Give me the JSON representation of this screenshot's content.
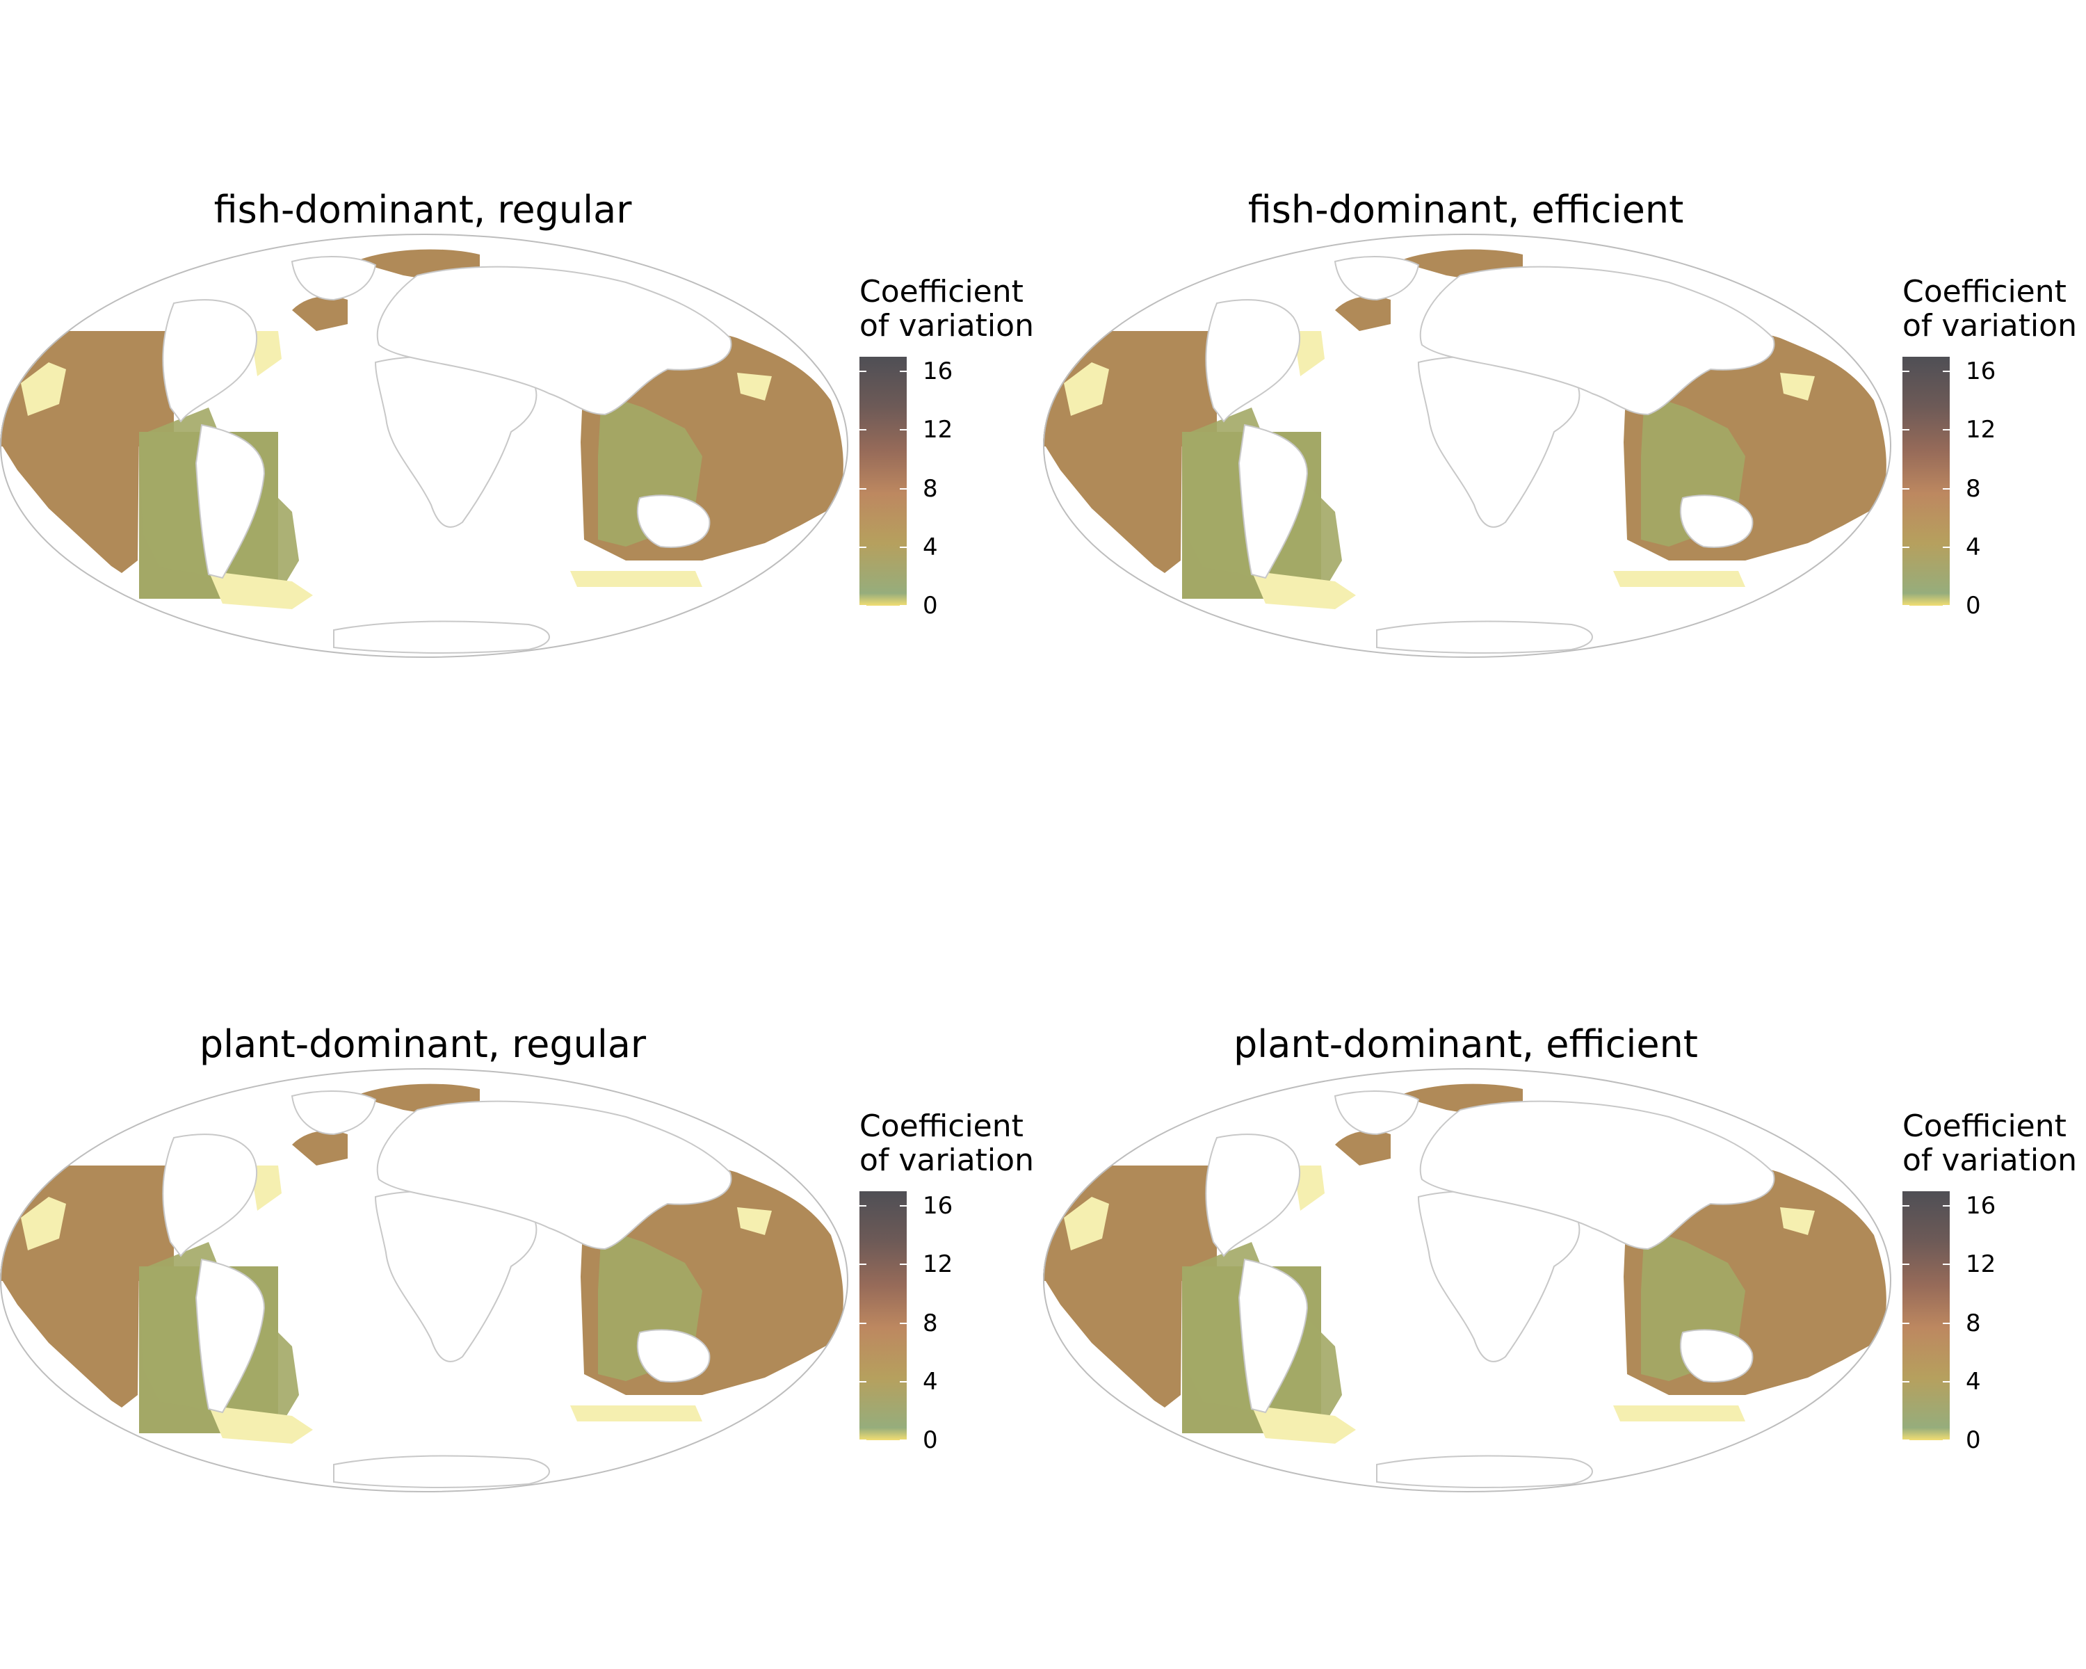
{
  "panels": [
    {
      "title": "fish-dominant, regular"
    },
    {
      "title": "fish-dominant, efficient"
    },
    {
      "title": "plant-dominant, regular"
    },
    {
      "title": "plant-dominant, efficient"
    }
  ],
  "legend": {
    "title_line1": "Coefficient",
    "title_line2": "of variation",
    "range": [
      0,
      17
    ],
    "ticks": [
      "16",
      "12",
      "8",
      "4",
      "0"
    ],
    "tick_values": [
      16,
      12,
      8,
      4,
      0
    ],
    "colors": [
      "#f2de73",
      "#96ad7c",
      "#b6a05e",
      "#bd8860",
      "#976b59",
      "#6d5a57",
      "#4f4f55"
    ]
  },
  "map": {
    "projection": "Mollweide",
    "ocean_fill": "#b08a58",
    "shelf_fill": "#a3a866",
    "low_fill": "#f5efb0",
    "land_outline": "#c8c8c8"
  }
}
